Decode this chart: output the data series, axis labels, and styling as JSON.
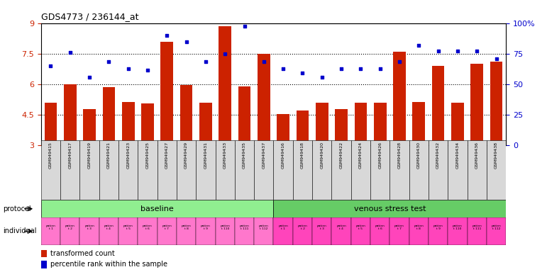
{
  "title": "GDS4773 / 236144_at",
  "categories": [
    "GSM949415",
    "GSM949417",
    "GSM949419",
    "GSM949421",
    "GSM949423",
    "GSM949425",
    "GSM949427",
    "GSM949429",
    "GSM949431",
    "GSM949433",
    "GSM949435",
    "GSM949437",
    "GSM949416",
    "GSM949418",
    "GSM949420",
    "GSM949422",
    "GSM949424",
    "GSM949426",
    "GSM949428",
    "GSM949430",
    "GSM949432",
    "GSM949434",
    "GSM949436",
    "GSM949438"
  ],
  "bar_values": [
    5.1,
    6.0,
    4.8,
    5.85,
    5.15,
    5.05,
    8.1,
    5.95,
    5.1,
    8.85,
    5.9,
    7.5,
    4.55,
    4.7,
    5.1,
    4.8,
    5.1,
    5.1,
    7.6,
    5.15,
    6.9,
    5.1,
    7.0,
    7.1
  ],
  "dot_values_left": [
    6.9,
    7.55,
    6.35,
    7.1,
    6.75,
    6.7,
    8.4,
    8.1,
    7.1,
    7.5,
    8.85,
    7.1,
    6.75,
    6.55,
    6.35,
    6.75,
    6.75,
    6.75,
    7.1,
    7.9,
    7.65,
    7.65,
    7.65,
    7.25
  ],
  "bar_color": "#CC2200",
  "dot_color": "#0000CC",
  "bg_color": "#ffffff",
  "ylim_left": [
    3,
    9
  ],
  "ylim_right": [
    0,
    100
  ],
  "yticks_left": [
    3,
    4.5,
    6,
    7.5,
    9
  ],
  "ytick_labels_left": [
    "3",
    "4.5",
    "6",
    "7.5",
    "9"
  ],
  "yticks_right": [
    0,
    25,
    50,
    75,
    100
  ],
  "ytick_labels_right": [
    "0",
    "25",
    "50",
    "75",
    "100%"
  ],
  "dotted_line_values": [
    4.5,
    6.0,
    7.5
  ],
  "baseline_count": 12,
  "protocol_labels": [
    "baseline",
    "venous stress test"
  ],
  "protocol_color_baseline": "#90EE90",
  "protocol_color_venous": "#66CC66",
  "individual_color_baseline": "#FF77CC",
  "individual_color_venous": "#FF44BB",
  "individual_labels_baseline": [
    "patien\nt 1",
    "patien\nt 2",
    "patien\nt 3",
    "patien\nt 4",
    "patien\nt 5",
    "patien\nt 6",
    "patien\nt 7",
    "patien\nt 8",
    "patien\nt 9",
    "patien\nt 110",
    "patien\nt 111",
    "patien\nt 112"
  ],
  "individual_labels_venous": [
    "patien\nt 1",
    "patien\nt 2",
    "patien\nt 3",
    "patien\nt 4",
    "patien\nt 5",
    "patien\nt 6",
    "patien\nt 7",
    "patien\nt 8",
    "patien\nt 9",
    "patien\nt 110",
    "patien\nt 111",
    "patien\nt 112"
  ],
  "legend_bar_label": "transformed count",
  "legend_dot_label": "percentile rank within the sample",
  "xticklabel_bg": "#d8d8d8"
}
